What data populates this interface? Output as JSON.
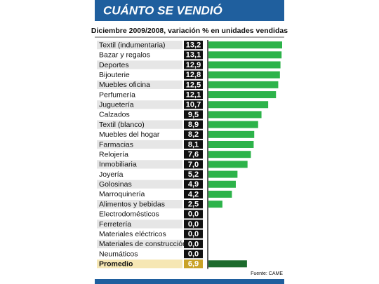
{
  "chart_data": {
    "type": "bar",
    "orientation": "horizontal",
    "title": "CUÁNTO SE VENDIÓ",
    "subtitle": "Diciembre 2009/2008, variación % en unidades vendidas",
    "source": "Fuente: CAME",
    "color": "#2db34a",
    "categories": [
      "Textil (indumentaria)",
      "Bazar y regalos",
      "Deportes",
      "Bijouterie",
      "Muebles oficina",
      "Perfumería",
      "Juguetería",
      "Calzados",
      "Textil (blanco)",
      "Muebles del hogar",
      "Farmacias",
      "Relojería",
      "Inmobiliaria",
      "Joyería",
      "Golosinas",
      "Marroquinería",
      "Alimentos y bebidas",
      "Electrodomésticos",
      "Ferretería",
      "Materiales eléctricos",
      "Materiales de construcción",
      "Neumáticos"
    ],
    "values": [
      13.2,
      13.1,
      12.9,
      12.8,
      12.5,
      12.1,
      10.7,
      9.5,
      8.9,
      8.2,
      8.1,
      7.6,
      7.0,
      5.2,
      4.9,
      4.2,
      2.5,
      0.0,
      0.0,
      0.0,
      0.0,
      0.0
    ],
    "value_labels": [
      "13,2",
      "13,1",
      "12,9",
      "12,8",
      "12,5",
      "12,1",
      "10,7",
      "9,5",
      "8,9",
      "8,2",
      "8,1",
      "7,6",
      "7,0",
      "5,2",
      "4,9",
      "4,2",
      "2,5",
      "0,0",
      "0,0",
      "0,0",
      "0,0",
      "0,0"
    ],
    "average": {
      "label": "Promedio",
      "value": 6.9,
      "value_label": "6,9",
      "color": "#1c6b2c"
    }
  }
}
